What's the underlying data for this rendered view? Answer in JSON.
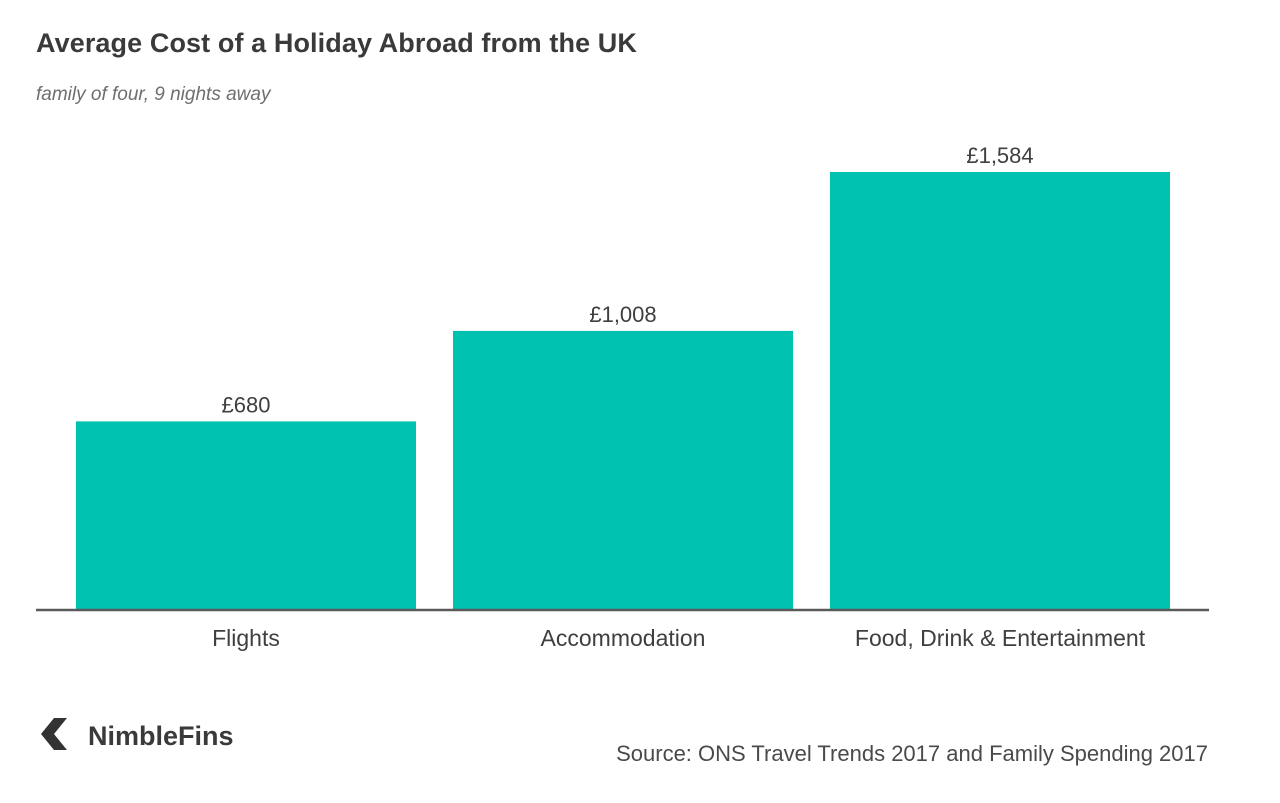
{
  "brand": {
    "name": "NimbleFins",
    "logo_icon": "chevron-left-logo-icon"
  },
  "source": "Source: ONS Travel Trends 2017 and Family Spending 2017",
  "colors": {
    "bar": "#00c2b0",
    "axis": "#5a5a5a",
    "text": "#3f3f3f"
  },
  "chart_data": {
    "type": "bar",
    "title": "Average Cost of a Holiday Abroad from the UK",
    "subtitle": "family of four, 9 nights away",
    "categories": [
      "Flights",
      "Accommodation",
      "Food, Drink & Entertainment"
    ],
    "values": [
      680,
      1008,
      1584
    ],
    "value_labels": [
      "£680",
      "£1,008",
      "£1,584"
    ],
    "xlabel": "",
    "ylabel": "",
    "ylim": [
      0,
      1584
    ],
    "grid": false,
    "legend": "none"
  }
}
